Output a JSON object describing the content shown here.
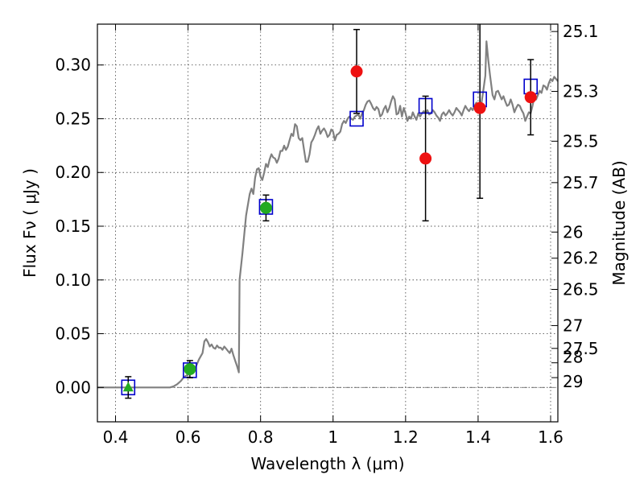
{
  "chart_data": {
    "type": "scatter",
    "xlabel": "Wavelength  λ (μm)",
    "ylabel": "Flux  Fν  ( μJy )",
    "ylabel_right": "Magnitude (AB)",
    "xlim": [
      0.35,
      1.62
    ],
    "ylim": [
      -0.032,
      0.338
    ],
    "x_ticks": [
      0.4,
      0.6,
      0.8,
      1.0,
      1.2,
      1.4,
      1.6
    ],
    "x_tick_labels": [
      "0.4",
      "0.6",
      "0.8",
      "1",
      "1.2",
      "1.4",
      "1.6"
    ],
    "y_ticks": [
      0.0,
      0.05,
      0.1,
      0.15,
      0.2,
      0.25,
      0.3
    ],
    "y_tick_labels": [
      "0.00",
      "0.05",
      "0.10",
      "0.15",
      "0.20",
      "0.25",
      "0.30"
    ],
    "right_ticks": [
      {
        "label": "25.1",
        "mag": 25.1
      },
      {
        "label": "25.3",
        "mag": 25.3
      },
      {
        "label": "25.5",
        "mag": 25.5
      },
      {
        "label": "25.7",
        "mag": 25.7
      },
      {
        "label": "26",
        "mag": 26.0
      },
      {
        "label": "26.2",
        "mag": 26.2
      },
      {
        "label": "26.5",
        "mag": 26.5
      },
      {
        "label": "27",
        "mag": 27.0
      },
      {
        "label": "27.5",
        "mag": 27.5
      },
      {
        "label": "28",
        "mag": 28.0
      },
      {
        "label": "29",
        "mag": 29.0
      }
    ],
    "grid": true,
    "colors": {
      "model": "#808080",
      "model_box": "#0000cc",
      "optical_point": "#22aa22",
      "nir_point": "#ee1111",
      "errorbar": "#000000",
      "zero_line": "#555555"
    },
    "model_spectrum": [
      [
        0.35,
        0.0
      ],
      [
        0.55,
        0.0
      ],
      [
        0.56,
        0.001
      ],
      [
        0.57,
        0.003
      ],
      [
        0.58,
        0.006
      ],
      [
        0.585,
        0.008
      ],
      [
        0.59,
        0.01
      ],
      [
        0.6,
        0.012
      ],
      [
        0.61,
        0.014
      ],
      [
        0.62,
        0.018
      ],
      [
        0.63,
        0.026
      ],
      [
        0.64,
        0.032
      ],
      [
        0.645,
        0.043
      ],
      [
        0.65,
        0.045
      ],
      [
        0.655,
        0.042
      ],
      [
        0.66,
        0.038
      ],
      [
        0.665,
        0.04
      ],
      [
        0.67,
        0.037
      ],
      [
        0.675,
        0.036
      ],
      [
        0.68,
        0.039
      ],
      [
        0.685,
        0.037
      ],
      [
        0.69,
        0.037
      ],
      [
        0.695,
        0.035
      ],
      [
        0.7,
        0.038
      ],
      [
        0.705,
        0.036
      ],
      [
        0.71,
        0.034
      ],
      [
        0.715,
        0.032
      ],
      [
        0.72,
        0.036
      ],
      [
        0.725,
        0.03
      ],
      [
        0.73,
        0.025
      ],
      [
        0.735,
        0.02
      ],
      [
        0.74,
        0.014
      ],
      [
        0.741,
        0.05
      ],
      [
        0.742,
        0.1
      ],
      [
        0.75,
        0.125
      ],
      [
        0.76,
        0.16
      ],
      [
        0.77,
        0.18
      ],
      [
        0.775,
        0.185
      ],
      [
        0.78,
        0.18
      ],
      [
        0.785,
        0.195
      ],
      [
        0.79,
        0.203
      ],
      [
        0.795,
        0.204
      ],
      [
        0.8,
        0.196
      ],
      [
        0.805,
        0.193
      ],
      [
        0.81,
        0.2
      ],
      [
        0.815,
        0.208
      ],
      [
        0.82,
        0.205
      ],
      [
        0.825,
        0.212
      ],
      [
        0.83,
        0.217
      ],
      [
        0.835,
        0.214
      ],
      [
        0.84,
        0.213
      ],
      [
        0.845,
        0.209
      ],
      [
        0.85,
        0.213
      ],
      [
        0.855,
        0.22
      ],
      [
        0.86,
        0.22
      ],
      [
        0.865,
        0.225
      ],
      [
        0.87,
        0.221
      ],
      [
        0.875,
        0.224
      ],
      [
        0.88,
        0.23
      ],
      [
        0.885,
        0.236
      ],
      [
        0.89,
        0.234
      ],
      [
        0.895,
        0.245
      ],
      [
        0.9,
        0.243
      ],
      [
        0.905,
        0.232
      ],
      [
        0.91,
        0.23
      ],
      [
        0.915,
        0.232
      ],
      [
        0.92,
        0.221
      ],
      [
        0.925,
        0.21
      ],
      [
        0.93,
        0.21
      ],
      [
        0.935,
        0.217
      ],
      [
        0.94,
        0.228
      ],
      [
        0.945,
        0.231
      ],
      [
        0.95,
        0.235
      ],
      [
        0.955,
        0.24
      ],
      [
        0.96,
        0.243
      ],
      [
        0.965,
        0.236
      ],
      [
        0.97,
        0.239
      ],
      [
        0.975,
        0.241
      ],
      [
        0.98,
        0.238
      ],
      [
        0.985,
        0.233
      ],
      [
        0.99,
        0.235
      ],
      [
        0.995,
        0.24
      ],
      [
        1.0,
        0.238
      ],
      [
        1.005,
        0.23
      ],
      [
        1.01,
        0.235
      ],
      [
        1.015,
        0.236
      ],
      [
        1.02,
        0.238
      ],
      [
        1.025,
        0.245
      ],
      [
        1.03,
        0.248
      ],
      [
        1.035,
        0.246
      ],
      [
        1.04,
        0.25
      ],
      [
        1.045,
        0.252
      ],
      [
        1.05,
        0.25
      ],
      [
        1.055,
        0.249
      ],
      [
        1.06,
        0.252
      ],
      [
        1.065,
        0.253
      ],
      [
        1.07,
        0.254
      ],
      [
        1.075,
        0.25
      ],
      [
        1.08,
        0.255
      ],
      [
        1.085,
        0.258
      ],
      [
        1.09,
        0.263
      ],
      [
        1.095,
        0.266
      ],
      [
        1.1,
        0.267
      ],
      [
        1.105,
        0.264
      ],
      [
        1.11,
        0.26
      ],
      [
        1.115,
        0.258
      ],
      [
        1.12,
        0.261
      ],
      [
        1.125,
        0.259
      ],
      [
        1.13,
        0.252
      ],
      [
        1.135,
        0.254
      ],
      [
        1.14,
        0.259
      ],
      [
        1.145,
        0.262
      ],
      [
        1.15,
        0.256
      ],
      [
        1.155,
        0.26
      ],
      [
        1.16,
        0.266
      ],
      [
        1.165,
        0.271
      ],
      [
        1.17,
        0.268
      ],
      [
        1.175,
        0.254
      ],
      [
        1.18,
        0.255
      ],
      [
        1.185,
        0.262
      ],
      [
        1.19,
        0.252
      ],
      [
        1.195,
        0.26
      ],
      [
        1.2,
        0.255
      ],
      [
        1.205,
        0.248
      ],
      [
        1.21,
        0.252
      ],
      [
        1.215,
        0.25
      ],
      [
        1.22,
        0.256
      ],
      [
        1.225,
        0.252
      ],
      [
        1.23,
        0.249
      ],
      [
        1.235,
        0.255
      ],
      [
        1.24,
        0.252
      ],
      [
        1.245,
        0.255
      ],
      [
        1.25,
        0.257
      ],
      [
        1.255,
        0.255
      ],
      [
        1.26,
        0.258
      ],
      [
        1.265,
        0.254
      ],
      [
        1.27,
        0.255
      ],
      [
        1.275,
        0.258
      ],
      [
        1.28,
        0.256
      ],
      [
        1.285,
        0.253
      ],
      [
        1.29,
        0.251
      ],
      [
        1.295,
        0.248
      ],
      [
        1.3,
        0.254
      ],
      [
        1.305,
        0.256
      ],
      [
        1.31,
        0.253
      ],
      [
        1.315,
        0.255
      ],
      [
        1.32,
        0.258
      ],
      [
        1.325,
        0.255
      ],
      [
        1.33,
        0.253
      ],
      [
        1.335,
        0.256
      ],
      [
        1.34,
        0.26
      ],
      [
        1.345,
        0.258
      ],
      [
        1.35,
        0.256
      ],
      [
        1.355,
        0.253
      ],
      [
        1.36,
        0.258
      ],
      [
        1.365,
        0.262
      ],
      [
        1.37,
        0.259
      ],
      [
        1.375,
        0.257
      ],
      [
        1.38,
        0.26
      ],
      [
        1.385,
        0.258
      ],
      [
        1.39,
        0.262
      ],
      [
        1.395,
        0.265
      ],
      [
        1.4,
        0.262
      ],
      [
        1.405,
        0.258
      ],
      [
        1.41,
        0.266
      ],
      [
        1.415,
        0.278
      ],
      [
        1.42,
        0.29
      ],
      [
        1.423,
        0.322
      ],
      [
        1.428,
        0.305
      ],
      [
        1.433,
        0.29
      ],
      [
        1.44,
        0.272
      ],
      [
        1.445,
        0.268
      ],
      [
        1.45,
        0.275
      ],
      [
        1.455,
        0.276
      ],
      [
        1.46,
        0.272
      ],
      [
        1.465,
        0.268
      ],
      [
        1.47,
        0.271
      ],
      [
        1.475,
        0.266
      ],
      [
        1.48,
        0.262
      ],
      [
        1.485,
        0.263
      ],
      [
        1.49,
        0.268
      ],
      [
        1.495,
        0.263
      ],
      [
        1.5,
        0.256
      ],
      [
        1.505,
        0.26
      ],
      [
        1.51,
        0.263
      ],
      [
        1.515,
        0.262
      ],
      [
        1.52,
        0.258
      ],
      [
        1.525,
        0.255
      ],
      [
        1.53,
        0.248
      ],
      [
        1.535,
        0.252
      ],
      [
        1.54,
        0.256
      ],
      [
        1.545,
        0.255
      ],
      [
        1.55,
        0.262
      ],
      [
        1.555,
        0.27
      ],
      [
        1.56,
        0.268
      ],
      [
        1.565,
        0.272
      ],
      [
        1.57,
        0.276
      ],
      [
        1.575,
        0.274
      ],
      [
        1.58,
        0.281
      ],
      [
        1.585,
        0.28
      ],
      [
        1.59,
        0.277
      ],
      [
        1.595,
        0.283
      ],
      [
        1.6,
        0.287
      ],
      [
        1.605,
        0.285
      ],
      [
        1.61,
        0.289
      ],
      [
        1.615,
        0.287
      ],
      [
        1.62,
        0.285
      ]
    ],
    "model_boxes": [
      {
        "x": 0.435,
        "y": 0.0
      },
      {
        "x": 0.605,
        "y": 0.016
      },
      {
        "x": 0.815,
        "y": 0.168
      },
      {
        "x": 1.065,
        "y": 0.25
      },
      {
        "x": 1.255,
        "y": 0.262
      },
      {
        "x": 1.405,
        "y": 0.268
      },
      {
        "x": 1.545,
        "y": 0.28
      }
    ],
    "photometry": [
      {
        "x": 0.435,
        "y": 0.0,
        "err": 0.01,
        "kind": "optical",
        "marker": "triangle"
      },
      {
        "x": 0.605,
        "y": 0.017,
        "err": 0.008,
        "kind": "optical",
        "marker": "circle"
      },
      {
        "x": 0.815,
        "y": 0.167,
        "err": 0.012,
        "kind": "optical",
        "marker": "circle"
      },
      {
        "x": 1.065,
        "y": 0.294,
        "err": 0.039,
        "kind": "nir",
        "marker": "circle"
      },
      {
        "x": 1.255,
        "y": 0.213,
        "err": 0.058,
        "kind": "nir",
        "marker": "circle"
      },
      {
        "x": 1.405,
        "y": 0.26,
        "err": 0.084,
        "kind": "nir",
        "marker": "circle"
      },
      {
        "x": 1.545,
        "y": 0.27,
        "err": 0.035,
        "kind": "nir",
        "marker": "circle"
      }
    ]
  }
}
